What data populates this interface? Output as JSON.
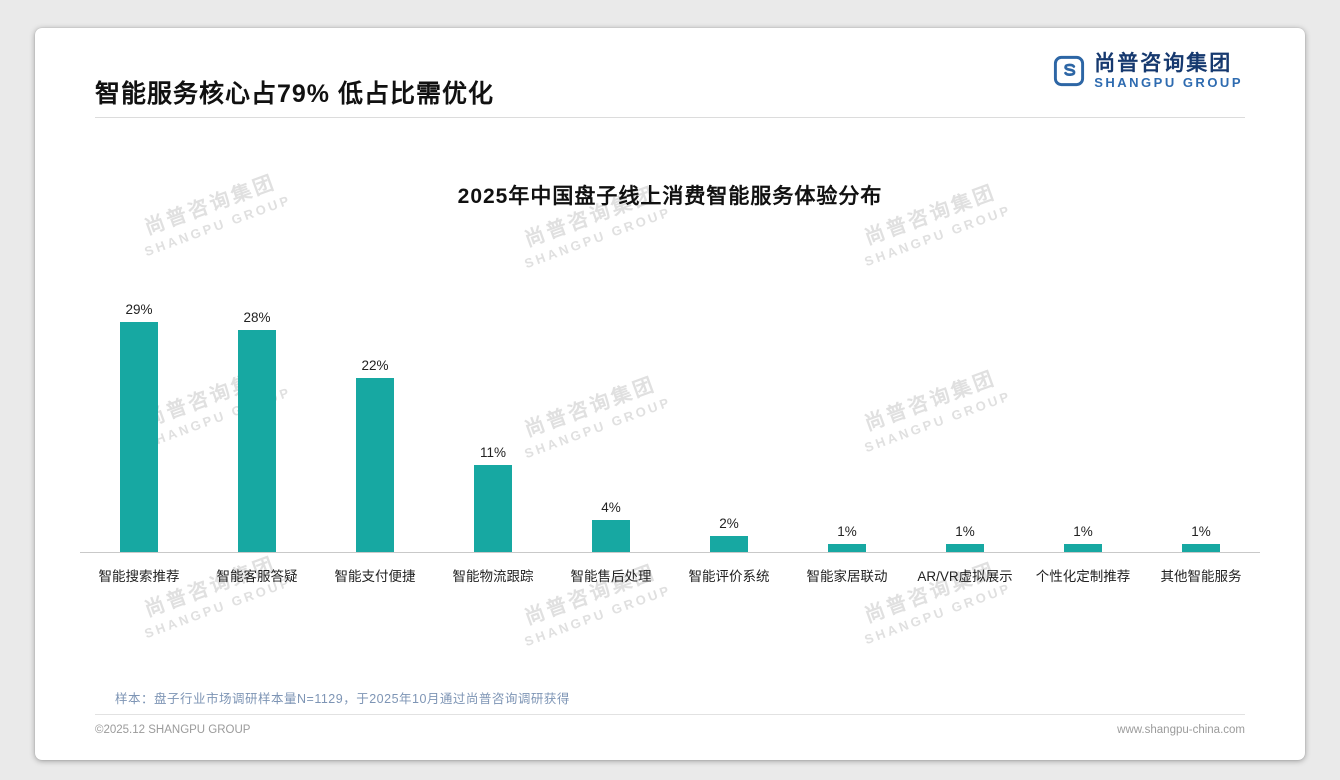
{
  "page": {
    "header_title": "智能服务核心占79% 低占比需优化",
    "logo": {
      "cn": "尚普咨询集团",
      "en": "SHANGPU GROUP"
    },
    "watermark": {
      "cn": "尚普咨询集团",
      "en": "SHANGPU GROUP"
    },
    "note": "样本：盘子行业市场调研样本量N=1129，于2025年10月通过尚普咨询调研获得",
    "footer": {
      "left": "©2025.12 SHANGPU GROUP",
      "right": "www.shangpu-china.com"
    }
  },
  "chart_data": {
    "type": "bar",
    "title": "2025年中国盘子线上消费智能服务体验分布",
    "categories": [
      "智能搜索推荐",
      "智能客服答疑",
      "智能支付便捷",
      "智能物流跟踪",
      "智能售后处理",
      "智能评价系统",
      "智能家居联动",
      "AR/VR虚拟展示",
      "个性化定制推荐",
      "其他智能服务"
    ],
    "values": [
      29,
      28,
      22,
      11,
      4,
      2,
      1,
      1,
      1,
      1
    ],
    "value_labels": [
      "29%",
      "28%",
      "22%",
      "11%",
      "4%",
      "2%",
      "1%",
      "1%",
      "1%",
      "1%"
    ],
    "bar_color": "#17a8a2",
    "xlabel": "",
    "ylabel": "",
    "ylim": [
      0,
      30
    ],
    "grid": false,
    "legend": "none"
  }
}
